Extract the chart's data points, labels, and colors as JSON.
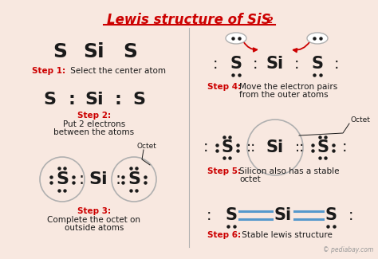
{
  "bg_color": "#f8e8e0",
  "red": "#cc0000",
  "black": "#1a1a1a",
  "blue": "#5599cc",
  "gray": "#b0b0b0",
  "watermark": "© pediabay.com",
  "step1_bold": "Step 1:",
  "step1_text": " Select the center atom",
  "step2_bold": "Step 2:",
  "step2_text": " Put 2 electrons\nbetween the atoms",
  "step3_bold": "Step 3:",
  "step3_text": " Complete the octet on\noutside atoms",
  "step4_bold": "Step 4:",
  "step4_text": " Move the electron pairs\nfrom the outer atoms",
  "step5_bold": "Step 5:",
  "step5_text": " Silicon also has a stable\noctet",
  "step6_bold": "Step 6:",
  "step6_text": " Stable lewis structure"
}
